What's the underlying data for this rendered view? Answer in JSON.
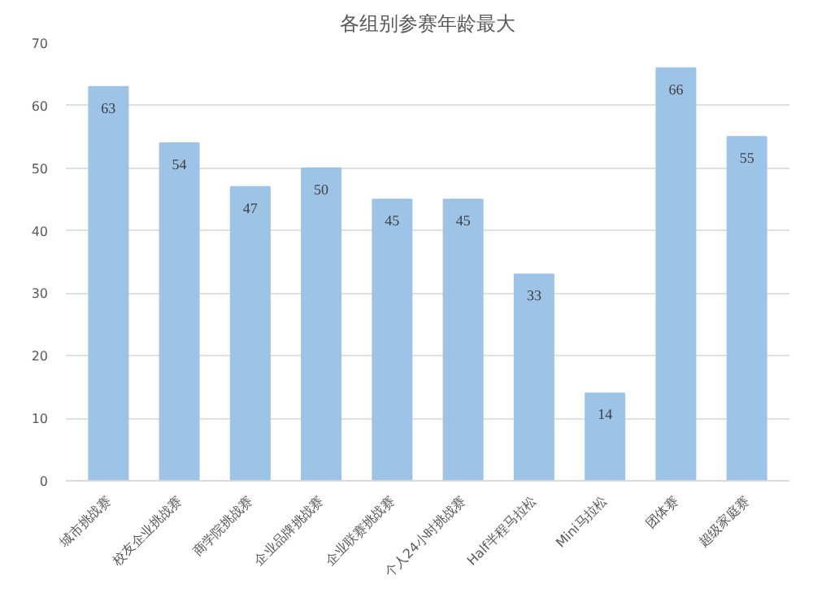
{
  "chart_data": {
    "type": "bar",
    "title": "各组别参赛年龄最大",
    "categories": [
      "城市挑战赛",
      "校友企业挑战赛",
      "商学院挑战赛",
      "企业品牌挑战赛",
      "企业联赛挑战赛",
      "个人24小时挑战赛",
      "Half半程马拉松",
      "Mini马拉松",
      "团体赛",
      "超级家庭赛"
    ],
    "values": [
      63,
      54,
      47,
      50,
      45,
      45,
      33,
      14,
      66,
      55
    ],
    "color": "#9dc3e6",
    "ylim": [
      0,
      70
    ],
    "yticks": [
      0,
      10,
      20,
      30,
      40,
      50,
      60,
      70
    ],
    "grid": "y",
    "data_labels": true
  }
}
